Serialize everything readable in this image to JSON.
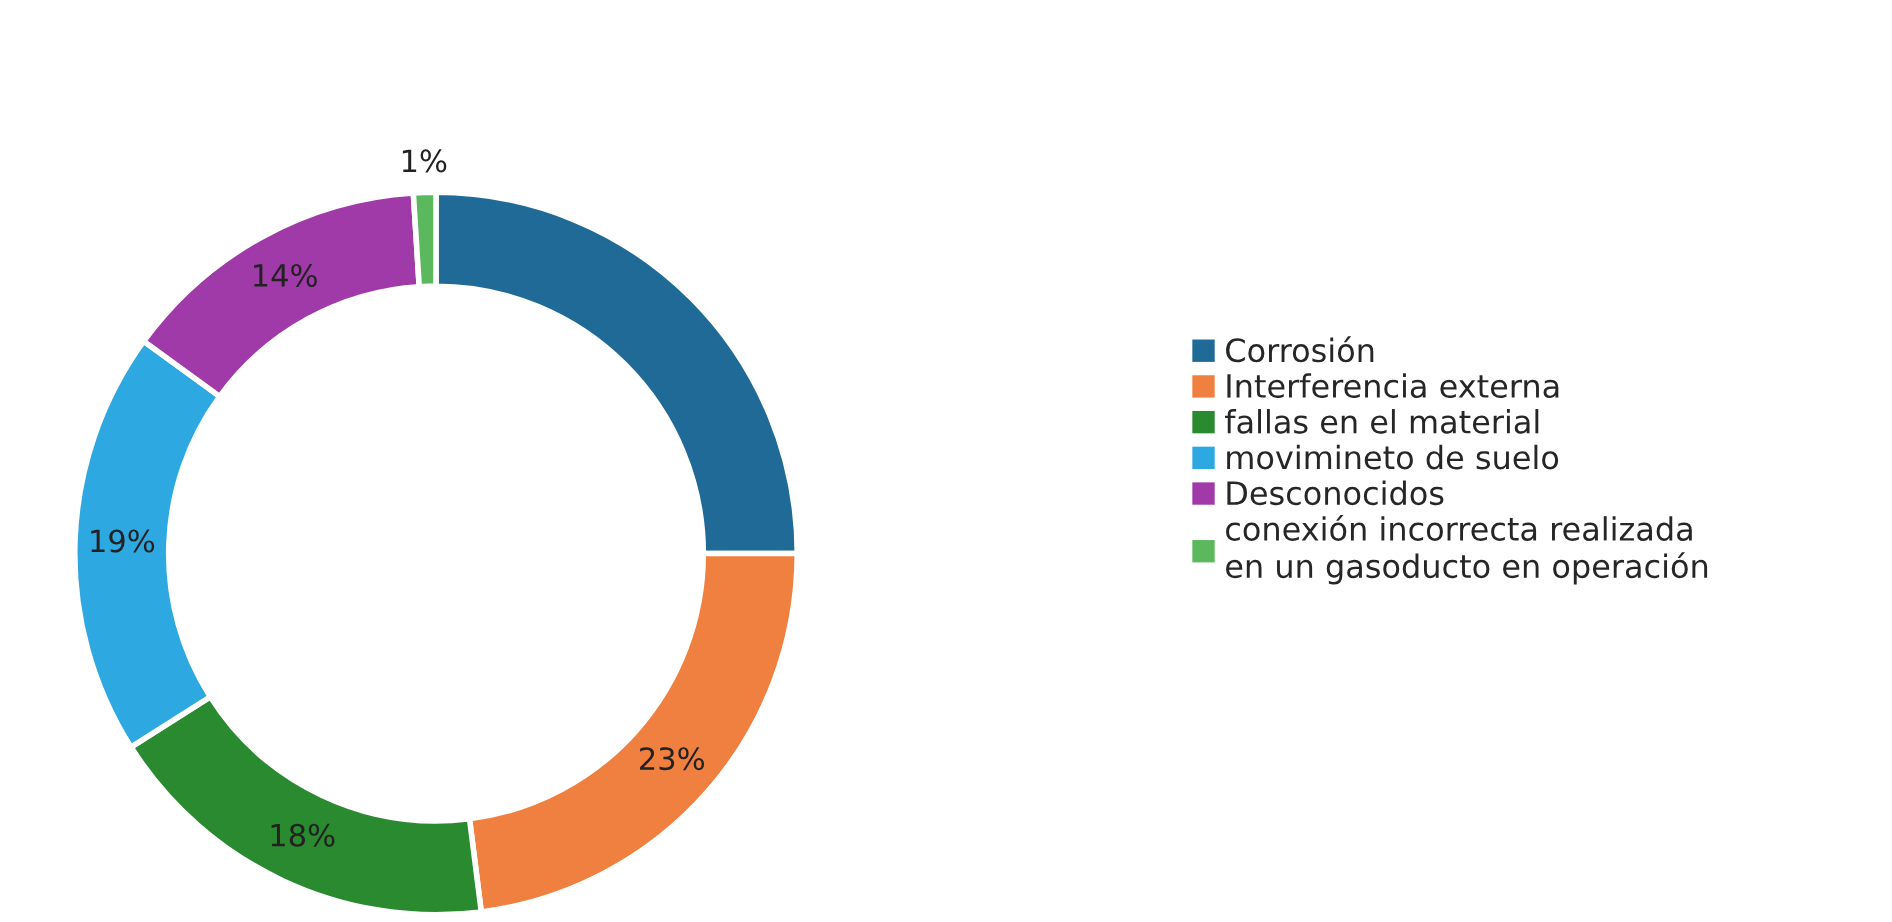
{
  "chart_data": {
    "type": "donut",
    "categories": [
      "Corrosión",
      "Interferencia externa",
      "fallas en el material",
      "movimineto de suelo",
      "Desconocidos",
      "conexión incorrecta realizada\nen un gasoducto en operación"
    ],
    "values": [
      25,
      23,
      18,
      19,
      14,
      1
    ],
    "value_labels": [
      null,
      "23%",
      "18%",
      "19%",
      "14%",
      "1%"
    ],
    "colors": [
      "#1f6a96",
      "#f08040",
      "#2a8a2f",
      "#2ea8e0",
      "#a03aa8",
      "#5cb85c"
    ],
    "legend": "right"
  }
}
